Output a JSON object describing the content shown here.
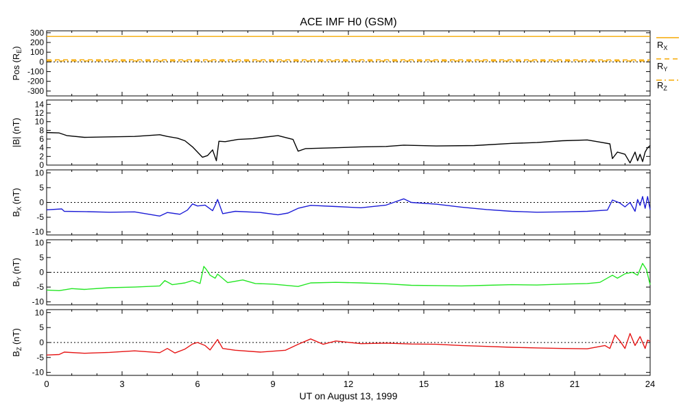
{
  "title": "ACE IMF H0 (GSM)",
  "xlabel": "UT on August 13, 1999",
  "colors": {
    "pos_lines": "#f5a800",
    "bmag": "#000000",
    "bx": "#1a1ad6",
    "by": "#22e622",
    "bz": "#e61414",
    "axes": "#000000",
    "zero_line": "#000000"
  },
  "chart_data": [
    {
      "type": "line",
      "panel": "position",
      "ylabel": "Pos (R",
      "ylabel_sub": "E",
      "ylabel_end": ")",
      "ylim": [
        -350,
        320
      ],
      "yticks": [
        -300,
        -200,
        -100,
        0,
        100,
        200,
        300
      ],
      "ytick_labels": [
        "-300",
        "-200",
        "-100",
        "0",
        "100",
        "200",
        "300"
      ],
      "xlim": [
        0,
        24
      ],
      "zero_line": true,
      "series": [
        {
          "name": "R",
          "sub": "X",
          "style": "solid",
          "x": [
            0,
            24
          ],
          "values": [
            262,
            262
          ]
        },
        {
          "name": "R",
          "sub": "Y",
          "style": "dashed",
          "x": [
            0,
            24
          ],
          "values": [
            22,
            21
          ]
        },
        {
          "name": "R",
          "sub": "Z",
          "style": "dashdot",
          "x": [
            0,
            24
          ],
          "values": [
            10,
            10
          ]
        }
      ]
    },
    {
      "type": "line",
      "panel": "bmag",
      "ylabel": "|B| (nT)",
      "ylim": [
        0,
        15
      ],
      "yticks": [
        0,
        2,
        4,
        6,
        8,
        10,
        12,
        14
      ],
      "ytick_labels": [
        "0",
        "2",
        "4",
        "6",
        "8",
        "10",
        "12",
        "14"
      ],
      "xlim": [
        0,
        24
      ],
      "zero_line": false,
      "series": [
        {
          "name": "|B|",
          "x": [
            0,
            0.5,
            0.8,
            1.5,
            2.5,
            3.5,
            4.5,
            4.8,
            5.2,
            5.5,
            5.8,
            6.0,
            6.2,
            6.4,
            6.6,
            6.75,
            6.85,
            7.1,
            7.6,
            8.2,
            9.2,
            9.8,
            10.0,
            10.3,
            11.5,
            12.5,
            13.5,
            14.2,
            15.5,
            17,
            18.5,
            19.5,
            20.5,
            21.5,
            22.0,
            22.4,
            22.5,
            22.7,
            23.0,
            23.2,
            23.4,
            23.5,
            23.6,
            23.7,
            23.8,
            23.9,
            24
          ],
          "values": [
            7.5,
            7.4,
            6.8,
            6.4,
            6.5,
            6.6,
            7.0,
            6.6,
            6.2,
            5.6,
            4.2,
            3.0,
            1.8,
            2.2,
            3.5,
            1.0,
            5.5,
            5.4,
            5.9,
            6.1,
            6.8,
            5.9,
            3.2,
            3.8,
            4.0,
            4.2,
            4.3,
            4.6,
            4.4,
            4.5,
            5.0,
            5.2,
            5.6,
            5.8,
            5.3,
            4.9,
            1.5,
            3.0,
            2.5,
            0.5,
            3.0,
            1.0,
            2.5,
            0.8,
            3.0,
            4.0,
            4.5
          ]
        }
      ]
    },
    {
      "type": "line",
      "panel": "bx",
      "ylabel": "B",
      "ylabel_sub": "X",
      "ylabel_end": " (nT)",
      "ylim": [
        -11,
        11
      ],
      "yticks": [
        -10,
        -5,
        0,
        5,
        10
      ],
      "ytick_labels": [
        "-10",
        "-5",
        "0",
        "5",
        "10"
      ],
      "xlim": [
        0,
        24
      ],
      "zero_line": true,
      "series": [
        {
          "name": "Bx",
          "x": [
            0,
            0.6,
            0.7,
            1.5,
            2.5,
            3.5,
            4.5,
            4.8,
            5.3,
            5.6,
            5.8,
            6.0,
            6.3,
            6.6,
            6.7,
            6.8,
            7.0,
            7.5,
            8.5,
            9.2,
            9.6,
            10.0,
            10.5,
            11.5,
            12.5,
            13.5,
            14.2,
            14.5,
            15.5,
            16.5,
            17.5,
            18.5,
            19.5,
            20.5,
            21.5,
            22.3,
            22.5,
            22.8,
            23.0,
            23.2,
            23.4,
            23.5,
            23.6,
            23.7,
            23.8,
            23.9,
            24
          ],
          "values": [
            -2.5,
            -2.2,
            -3.0,
            -3.1,
            -3.3,
            -3.2,
            -4.6,
            -3.4,
            -4.0,
            -2.6,
            -0.5,
            -1.2,
            -0.9,
            -2.8,
            -1.0,
            1.0,
            -3.8,
            -3.0,
            -3.4,
            -4.2,
            -3.6,
            -2.0,
            -1.0,
            -1.4,
            -1.8,
            -0.9,
            1.2,
            0.0,
            -0.6,
            -1.6,
            -2.4,
            -3.0,
            -3.3,
            -3.2,
            -3.0,
            -2.6,
            0.8,
            -0.2,
            -1.5,
            0.0,
            -3.0,
            1.0,
            -1.0,
            2.0,
            -2.0,
            2.0,
            -2.5
          ]
        }
      ]
    },
    {
      "type": "line",
      "panel": "by",
      "ylabel": "B",
      "ylabel_sub": "Y",
      "ylabel_end": " (nT)",
      "ylim": [
        -11,
        11
      ],
      "yticks": [
        -10,
        -5,
        0,
        5,
        10
      ],
      "ytick_labels": [
        "-10",
        "-5",
        "0",
        "5",
        "10"
      ],
      "xlim": [
        0,
        24
      ],
      "zero_line": true,
      "series": [
        {
          "name": "By",
          "x": [
            0,
            0.5,
            1.0,
            1.5,
            2.5,
            3.5,
            4.5,
            4.7,
            5.0,
            5.5,
            5.8,
            6.1,
            6.25,
            6.35,
            6.5,
            6.7,
            6.8,
            7.2,
            7.8,
            8.3,
            9.0,
            10.0,
            10.5,
            11.5,
            12.5,
            13.5,
            14.5,
            15.5,
            16.5,
            17.5,
            18.5,
            19.5,
            20.5,
            21.5,
            22.0,
            22.5,
            22.7,
            23.0,
            23.3,
            23.5,
            23.7,
            23.85,
            24
          ],
          "values": [
            -6.0,
            -6.2,
            -5.5,
            -5.8,
            -5.2,
            -5.0,
            -4.6,
            -2.8,
            -4.2,
            -3.6,
            -2.8,
            -3.8,
            2.0,
            1.0,
            -1.0,
            -2.0,
            -0.6,
            -3.5,
            -2.6,
            -3.8,
            -4.0,
            -4.8,
            -3.6,
            -3.4,
            -3.6,
            -3.9,
            -4.4,
            -4.5,
            -4.6,
            -4.4,
            -4.2,
            -4.3,
            -4.0,
            -3.8,
            -3.4,
            -1.0,
            -2.0,
            -0.5,
            0.0,
            -1.0,
            3.0,
            1.0,
            -4.2
          ]
        }
      ]
    },
    {
      "type": "line",
      "panel": "bz",
      "ylabel": "B",
      "ylabel_sub": "Z",
      "ylabel_end": " (nT)",
      "ylim": [
        -11,
        11
      ],
      "yticks": [
        -10,
        -5,
        0,
        5,
        10
      ],
      "ytick_labels": [
        "-10",
        "-5",
        "0",
        "5",
        "10"
      ],
      "xlim": [
        0,
        24
      ],
      "zero_line": true,
      "series": [
        {
          "name": "Bz",
          "x": [
            0,
            0.5,
            0.7,
            1.5,
            2.5,
            3.5,
            4.5,
            4.8,
            5.1,
            5.5,
            5.8,
            6.0,
            6.3,
            6.5,
            6.8,
            7.0,
            7.5,
            8.5,
            9.5,
            10.0,
            10.5,
            11.0,
            11.5,
            12.5,
            13.5,
            14.5,
            15.5,
            16.5,
            17.5,
            18.5,
            19.5,
            20.5,
            21.5,
            22.2,
            22.4,
            22.6,
            22.8,
            23.0,
            23.2,
            23.4,
            23.6,
            23.8,
            23.9,
            24
          ],
          "values": [
            -4.2,
            -4.0,
            -3.2,
            -3.6,
            -3.3,
            -2.8,
            -3.4,
            -2.0,
            -3.5,
            -2.2,
            -0.5,
            0.0,
            -1.0,
            -2.5,
            1.0,
            -2.0,
            -2.6,
            -3.2,
            -2.6,
            -0.6,
            1.2,
            -0.6,
            0.5,
            -0.4,
            -0.2,
            -0.5,
            -0.6,
            -1.0,
            -1.3,
            -1.6,
            -1.8,
            -2.0,
            -2.1,
            -1.0,
            -2.0,
            2.5,
            0.5,
            -2.0,
            3.0,
            -1.0,
            2.0,
            -2.0,
            0.8,
            0.4
          ]
        }
      ]
    }
  ],
  "x_axis": {
    "ticks": [
      0,
      3,
      6,
      9,
      12,
      15,
      18,
      21,
      24
    ],
    "tick_labels": [
      "0",
      "3",
      "6",
      "9",
      "12",
      "15",
      "18",
      "21",
      "24"
    ]
  }
}
